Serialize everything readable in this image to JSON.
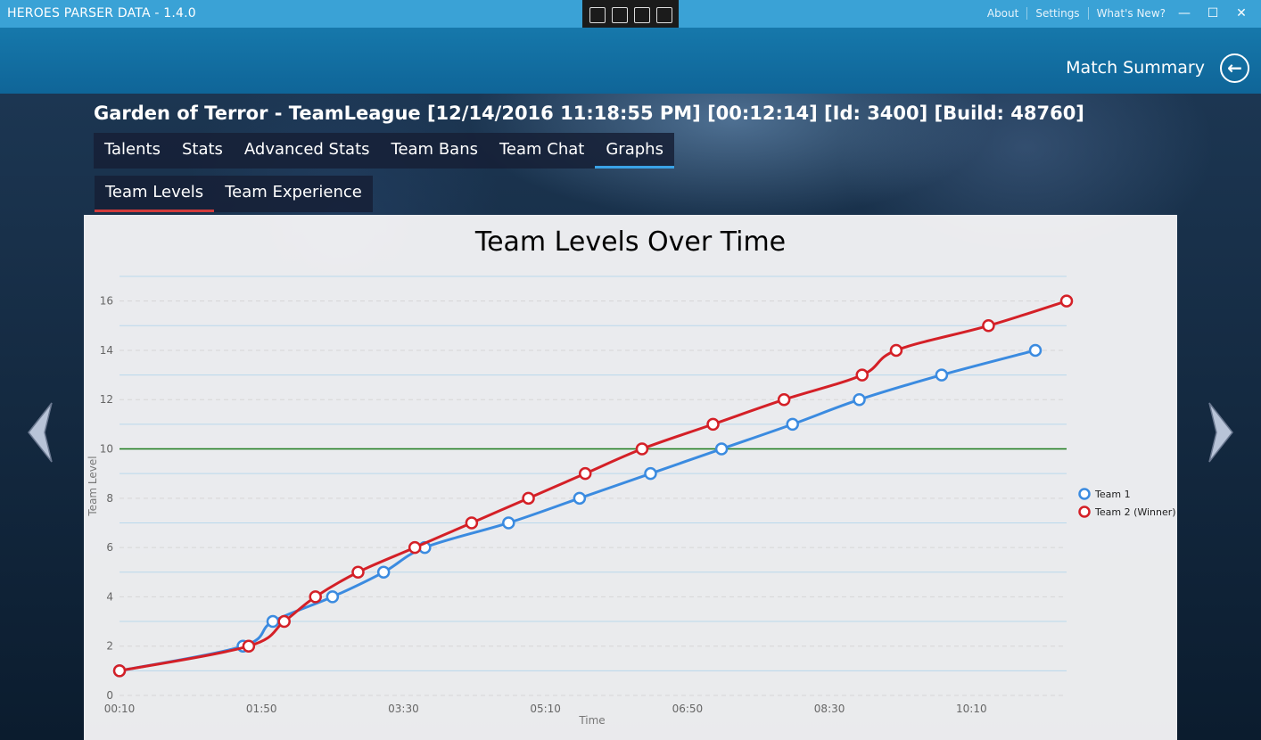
{
  "window": {
    "title": "HEROES PARSER DATA - 1.4.0",
    "links": [
      "About",
      "Settings",
      "What's New?"
    ],
    "buttons": {
      "minimize": "—",
      "maximize": "☐",
      "close": "✕"
    }
  },
  "header": {
    "page_title": "Match Summary",
    "back_icon": "arrow-left-icon"
  },
  "match": {
    "title": "Garden of Terror - TeamLeague [12/14/2016 11:18:55 PM] [00:12:14] [Id: 3400] [Build: 48760]"
  },
  "tabs": {
    "main": [
      "Talents",
      "Stats",
      "Advanced Stats",
      "Team Bans",
      "Team Chat",
      "Graphs"
    ],
    "main_active": "Graphs",
    "sub": [
      "Team Levels",
      "Team Experience"
    ],
    "sub_active": "Team Levels"
  },
  "colors": {
    "team1": "#3b8be0",
    "team2": "#d42027",
    "level10_line": "#1a7a1a",
    "accent": "#3aa2d6"
  },
  "chart_data": {
    "type": "line",
    "title": "Team Levels Over Time",
    "xlabel": "Time",
    "ylabel": "Team Level",
    "x_tick_labels": [
      "00:10",
      "01:50",
      "03:30",
      "05:10",
      "06:50",
      "08:30",
      "10:10"
    ],
    "x_ticks_seconds": [
      10,
      110,
      210,
      310,
      410,
      510,
      610
    ],
    "xlim_seconds": [
      10,
      677
    ],
    "ylim": [
      0,
      17
    ],
    "y_ticks": [
      0,
      2,
      4,
      6,
      8,
      10,
      12,
      14,
      16
    ],
    "reference_line": 10,
    "legend_position": "right",
    "series": [
      {
        "name": "Team 1",
        "color": "#3b8be0",
        "points": [
          [
            10,
            1
          ],
          [
            97,
            2
          ],
          [
            118,
            3
          ],
          [
            160,
            4
          ],
          [
            196,
            5
          ],
          [
            225,
            6
          ],
          [
            284,
            7
          ],
          [
            334,
            8
          ],
          [
            384,
            9
          ],
          [
            434,
            10
          ],
          [
            484,
            11
          ],
          [
            531,
            12
          ],
          [
            589,
            13
          ],
          [
            655,
            14
          ]
        ]
      },
      {
        "name": "Team 2 (Winner)",
        "color": "#d42027",
        "points": [
          [
            10,
            1
          ],
          [
            101,
            2
          ],
          [
            126,
            3
          ],
          [
            148,
            4
          ],
          [
            178,
            5
          ],
          [
            218,
            6
          ],
          [
            258,
            7
          ],
          [
            298,
            8
          ],
          [
            338,
            9
          ],
          [
            378,
            10
          ],
          [
            428,
            11
          ],
          [
            478,
            12
          ],
          [
            533,
            13
          ],
          [
            557,
            14
          ],
          [
            622,
            15
          ],
          [
            677,
            16
          ]
        ]
      }
    ]
  }
}
